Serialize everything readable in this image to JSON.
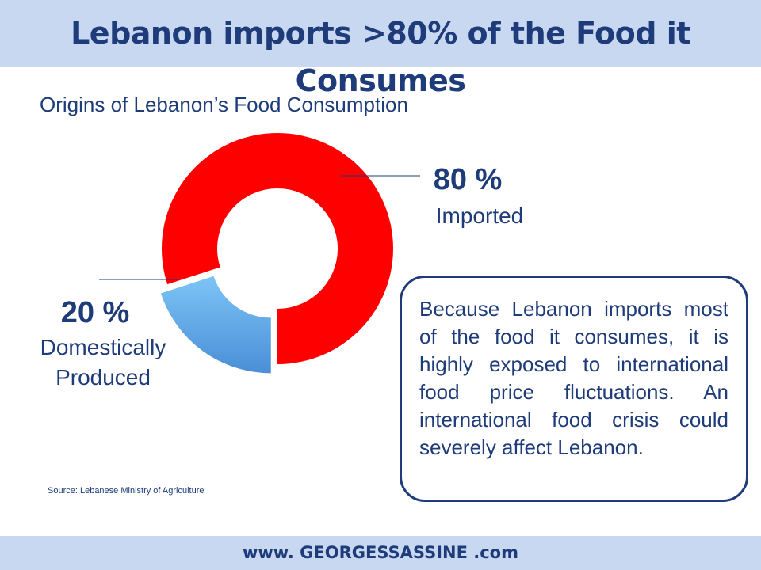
{
  "header": {
    "title": "Lebanon imports >80% of the Food it Consumes"
  },
  "chart_data": {
    "type": "pie",
    "variant": "donut",
    "title": "Origins of Lebanon’s Food Consumption",
    "slices": [
      {
        "label": "Imported",
        "value": 80,
        "value_label": "80 %",
        "color": "#ff0000"
      },
      {
        "label": "Domestically Produced",
        "value": 20,
        "value_label": "20 %",
        "color": "#6fb6ee"
      }
    ],
    "legend": "none"
  },
  "labels": {
    "imported_name": "Imported",
    "domestic_name_line1": "Domestically",
    "domestic_name_line2": "Produced"
  },
  "info_box": {
    "text": "Because Lebanon imports most of the food it consumes, it is highly exposed to international food price fluctuations. An international food crisis could severely affect Lebanon."
  },
  "source": "Source: Lebanese Ministry of Agriculture",
  "footer": {
    "text": "www. GEORGESSASSINE .com"
  }
}
